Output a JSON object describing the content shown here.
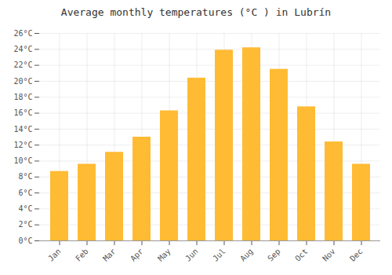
{
  "chart_data": {
    "type": "bar",
    "title": "Average monthly temperatures (°C ) in Lubrín",
    "categories": [
      "Jan",
      "Feb",
      "Mar",
      "Apr",
      "May",
      "Jun",
      "Jul",
      "Aug",
      "Sep",
      "Oct",
      "Nov",
      "Dec"
    ],
    "values": [
      8.7,
      9.6,
      11.1,
      13.0,
      16.3,
      20.4,
      23.9,
      24.2,
      21.5,
      16.8,
      12.4,
      9.6
    ],
    "color": "#FFBB33",
    "ylim": [
      0,
      26
    ],
    "yticks": [
      {
        "value": 0,
        "label": "0°C"
      },
      {
        "value": 2,
        "label": "2°C"
      },
      {
        "value": 4,
        "label": "4°C"
      },
      {
        "value": 6,
        "label": "6°C"
      },
      {
        "value": 8,
        "label": "8°C"
      },
      {
        "value": 10,
        "label": "10°C"
      },
      {
        "value": 12,
        "label": "12°C"
      },
      {
        "value": 14,
        "label": "14°C"
      },
      {
        "value": 16,
        "label": "16°C"
      },
      {
        "value": 18,
        "label": "18°C"
      },
      {
        "value": 20,
        "label": "20°C"
      },
      {
        "value": 22,
        "label": "22°C"
      },
      {
        "value": 24,
        "label": "24°C"
      },
      {
        "value": 26,
        "label": "26°C"
      }
    ],
    "grid": true
  }
}
